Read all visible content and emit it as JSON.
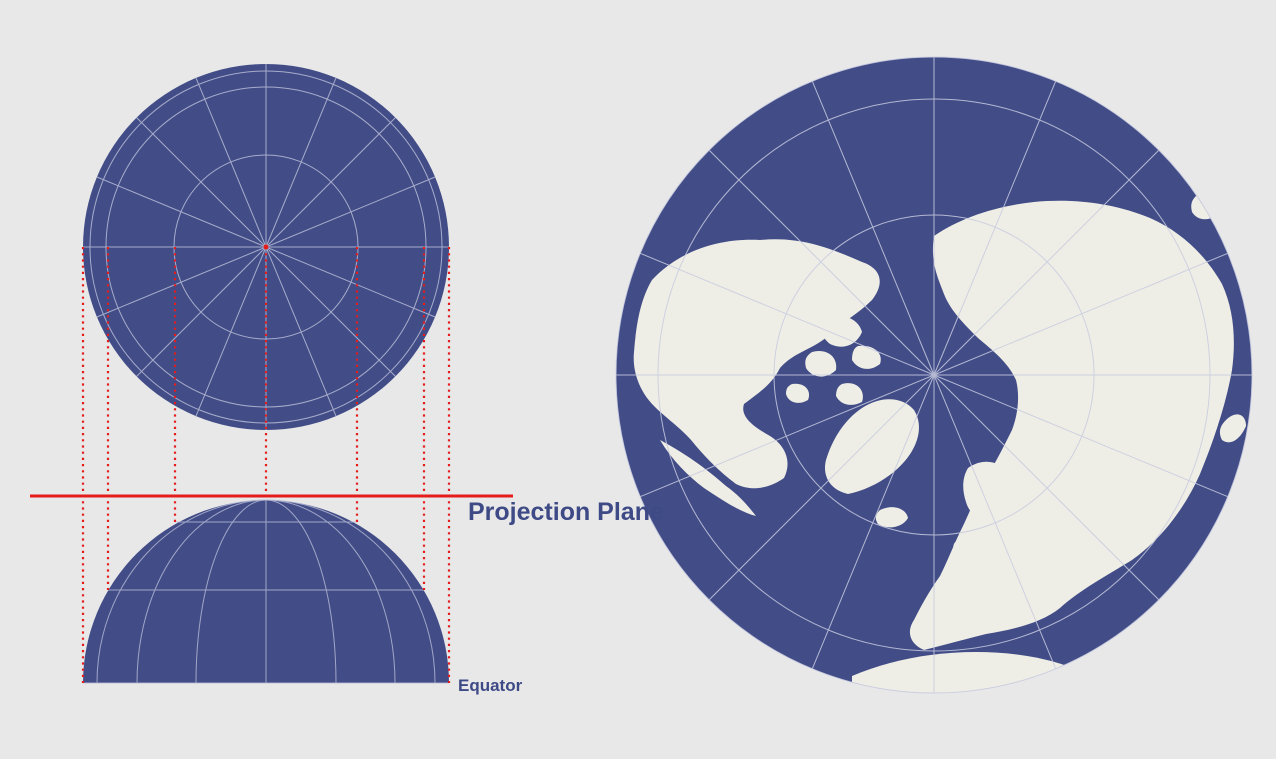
{
  "labels": {
    "projection_plane": "Projection Plane",
    "equator": "Equator"
  },
  "colors": {
    "background": "#e8e8e8",
    "ocean": "#424d88",
    "land": "#efeee6",
    "graticule": "#b9bdd6",
    "projection_lines": "#e51c1c"
  },
  "diagram": {
    "top_view": {
      "meridians": 16,
      "latitude_circles": 3
    },
    "side_view": {
      "projection_lines": 8
    }
  },
  "map": {
    "projection": "orthographic-north-polar",
    "meridians": 16,
    "latitude_circles": 3
  }
}
